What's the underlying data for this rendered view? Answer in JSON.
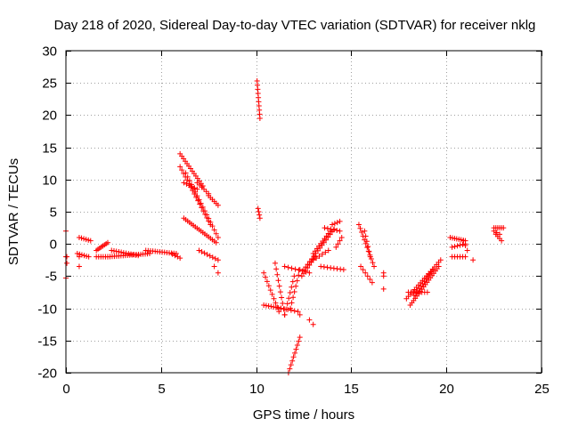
{
  "chart_data": {
    "type": "scatter",
    "title": "Day 218 of 2020, Sidereal Day-to-day VTEC variation (SDTVAR) for receiver nklg",
    "xlabel": "GPS time / hours",
    "ylabel": "SDTVAR / TECUs",
    "xlim": [
      0,
      25
    ],
    "ylim": [
      -20,
      30
    ],
    "xticks": [
      0,
      5,
      10,
      15,
      20,
      25
    ],
    "yticks": [
      -20,
      -15,
      -10,
      -5,
      0,
      5,
      10,
      15,
      20,
      25,
      30
    ],
    "grid": true,
    "marker": "+",
    "color": "#ff0000",
    "series": [
      {
        "name": "nklg",
        "segments": [
          {
            "x0": 0.0,
            "y0": 2.0,
            "x1": 0.0,
            "y1": 2.0,
            "n": 1
          },
          {
            "x0": 0.0,
            "y0": -2.0,
            "x1": 0.05,
            "y1": -2.0,
            "n": 2
          },
          {
            "x0": 0.0,
            "y0": -5.3,
            "x1": 0.0,
            "y1": -5.3,
            "n": 1
          },
          {
            "x0": 0.05,
            "y0": -3.0,
            "x1": 0.05,
            "y1": -3.0,
            "n": 1
          },
          {
            "x0": 0.7,
            "y0": -2.0,
            "x1": 0.7,
            "y1": -3.5,
            "n": 2
          },
          {
            "x0": 0.7,
            "y0": 1.0,
            "x1": 1.3,
            "y1": 0.5,
            "n": 6
          },
          {
            "x0": 0.6,
            "y0": -1.5,
            "x1": 1.2,
            "y1": -2.0,
            "n": 6
          },
          {
            "x0": 1.6,
            "y0": -2.0,
            "x1": 2.2,
            "y1": -2.0,
            "n": 6
          },
          {
            "x0": 1.6,
            "y0": -1.0,
            "x1": 2.2,
            "y1": 0.2,
            "n": 8
          },
          {
            "x0": 2.2,
            "y0": -2.0,
            "x1": 4.4,
            "y1": -1.5,
            "n": 20
          },
          {
            "x0": 2.4,
            "y0": -1.0,
            "x1": 3.8,
            "y1": -1.8,
            "n": 12
          },
          {
            "x0": 4.2,
            "y0": -1.0,
            "x1": 5.8,
            "y1": -1.5,
            "n": 14
          },
          {
            "x0": 5.6,
            "y0": -1.6,
            "x1": 6.0,
            "y1": -2.2,
            "n": 4
          },
          {
            "x0": 6.0,
            "y0": 14.0,
            "x1": 7.2,
            "y1": 9.0,
            "n": 14
          },
          {
            "x0": 6.0,
            "y0": 12.0,
            "x1": 7.6,
            "y1": 3.0,
            "n": 18
          },
          {
            "x0": 6.3,
            "y0": 11.0,
            "x1": 8.0,
            "y1": 1.0,
            "n": 18
          },
          {
            "x0": 6.2,
            "y0": 9.5,
            "x1": 6.9,
            "y1": 8.5,
            "n": 6
          },
          {
            "x0": 6.9,
            "y0": 9.5,
            "x1": 7.5,
            "y1": 7.8,
            "n": 6
          },
          {
            "x0": 7.5,
            "y0": 7.5,
            "x1": 8.0,
            "y1": 6.0,
            "n": 6
          },
          {
            "x0": 6.2,
            "y0": 4.0,
            "x1": 7.9,
            "y1": 0.2,
            "n": 18
          },
          {
            "x0": 7.0,
            "y0": -1.0,
            "x1": 8.0,
            "y1": -2.5,
            "n": 8
          },
          {
            "x0": 7.8,
            "y0": -3.5,
            "x1": 8.0,
            "y1": -4.5,
            "n": 2
          },
          {
            "x0": 10.05,
            "y0": 25.3,
            "x1": 10.2,
            "y1": 19.5,
            "n": 10
          },
          {
            "x0": 10.1,
            "y0": 5.5,
            "x1": 10.2,
            "y1": 4.0,
            "n": 4
          },
          {
            "x0": 10.4,
            "y0": -4.5,
            "x1": 11.2,
            "y1": -10.5,
            "n": 10
          },
          {
            "x0": 10.4,
            "y0": -9.5,
            "x1": 11.3,
            "y1": -10.0,
            "n": 8
          },
          {
            "x0": 11.0,
            "y0": -3.0,
            "x1": 11.5,
            "y1": -11.0,
            "n": 10
          },
          {
            "x0": 11.5,
            "y0": -11.0,
            "x1": 12.0,
            "y1": -5.0,
            "n": 8
          },
          {
            "x0": 11.8,
            "y0": -10.0,
            "x1": 12.3,
            "y1": -4.0,
            "n": 8
          },
          {
            "x0": 11.5,
            "y0": -3.5,
            "x1": 12.8,
            "y1": -4.5,
            "n": 8
          },
          {
            "x0": 11.3,
            "y0": -10.0,
            "x1": 12.2,
            "y1": -10.5,
            "n": 6
          },
          {
            "x0": 12.3,
            "y0": -11.0,
            "x1": 12.3,
            "y1": -11.0,
            "n": 1
          },
          {
            "x0": 12.8,
            "y0": -11.8,
            "x1": 12.8,
            "y1": -11.8,
            "n": 1
          },
          {
            "x0": 13.0,
            "y0": -12.5,
            "x1": 13.0,
            "y1": -12.5,
            "n": 1
          },
          {
            "x0": 11.7,
            "y0": -20.0,
            "x1": 12.3,
            "y1": -14.5,
            "n": 10
          },
          {
            "x0": 12.4,
            "y0": -5.0,
            "x1": 13.1,
            "y1": -2.0,
            "n": 8
          },
          {
            "x0": 12.5,
            "y0": -4.0,
            "x1": 14.1,
            "y1": 2.3,
            "n": 16
          },
          {
            "x0": 13.0,
            "y0": -1.5,
            "x1": 13.9,
            "y1": 2.0,
            "n": 10
          },
          {
            "x0": 13.0,
            "y0": -2.5,
            "x1": 13.8,
            "y1": -1.0,
            "n": 6
          },
          {
            "x0": 13.6,
            "y0": 2.5,
            "x1": 14.4,
            "y1": 2.0,
            "n": 6
          },
          {
            "x0": 14.0,
            "y0": 3.0,
            "x1": 14.4,
            "y1": 3.5,
            "n": 4
          },
          {
            "x0": 13.4,
            "y0": -3.5,
            "x1": 14.6,
            "y1": -4.0,
            "n": 8
          },
          {
            "x0": 14.2,
            "y0": -0.5,
            "x1": 14.5,
            "y1": 1.0,
            "n": 4
          },
          {
            "x0": 15.4,
            "y0": 3.0,
            "x1": 16.2,
            "y1": -3.5,
            "n": 12
          },
          {
            "x0": 15.7,
            "y0": 2.0,
            "x1": 16.0,
            "y1": -2.0,
            "n": 6
          },
          {
            "x0": 15.5,
            "y0": -3.5,
            "x1": 16.1,
            "y1": -6.0,
            "n": 6
          },
          {
            "x0": 16.7,
            "y0": -4.5,
            "x1": 16.7,
            "y1": -5.0,
            "n": 2
          },
          {
            "x0": 16.7,
            "y0": -7.0,
            "x1": 16.7,
            "y1": -7.0,
            "n": 1
          },
          {
            "x0": 17.9,
            "y0": -8.5,
            "x1": 19.7,
            "y1": -2.5,
            "n": 18
          },
          {
            "x0": 18.1,
            "y0": -9.5,
            "x1": 19.6,
            "y1": -3.5,
            "n": 18
          },
          {
            "x0": 18.3,
            "y0": -8.0,
            "x1": 19.3,
            "y1": -4.0,
            "n": 12
          },
          {
            "x0": 18.0,
            "y0": -7.5,
            "x1": 19.0,
            "y1": -7.5,
            "n": 8
          },
          {
            "x0": 20.2,
            "y0": 1.0,
            "x1": 21.0,
            "y1": 0.5,
            "n": 8
          },
          {
            "x0": 20.3,
            "y0": -0.5,
            "x1": 21.0,
            "y1": 0.0,
            "n": 6
          },
          {
            "x0": 20.3,
            "y0": -2.0,
            "x1": 21.0,
            "y1": -2.0,
            "n": 6
          },
          {
            "x0": 20.9,
            "y0": 0.5,
            "x1": 21.1,
            "y1": -1.0,
            "n": 3
          },
          {
            "x0": 21.4,
            "y0": -2.5,
            "x1": 21.4,
            "y1": -2.5,
            "n": 1
          },
          {
            "x0": 22.5,
            "y0": 2.5,
            "x1": 23.0,
            "y1": 2.5,
            "n": 6
          },
          {
            "x0": 22.6,
            "y0": 1.5,
            "x1": 22.9,
            "y1": 0.5,
            "n": 4
          },
          {
            "x0": 22.5,
            "y0": 2.0,
            "x1": 22.8,
            "y1": 1.5,
            "n": 3
          }
        ]
      }
    ]
  }
}
